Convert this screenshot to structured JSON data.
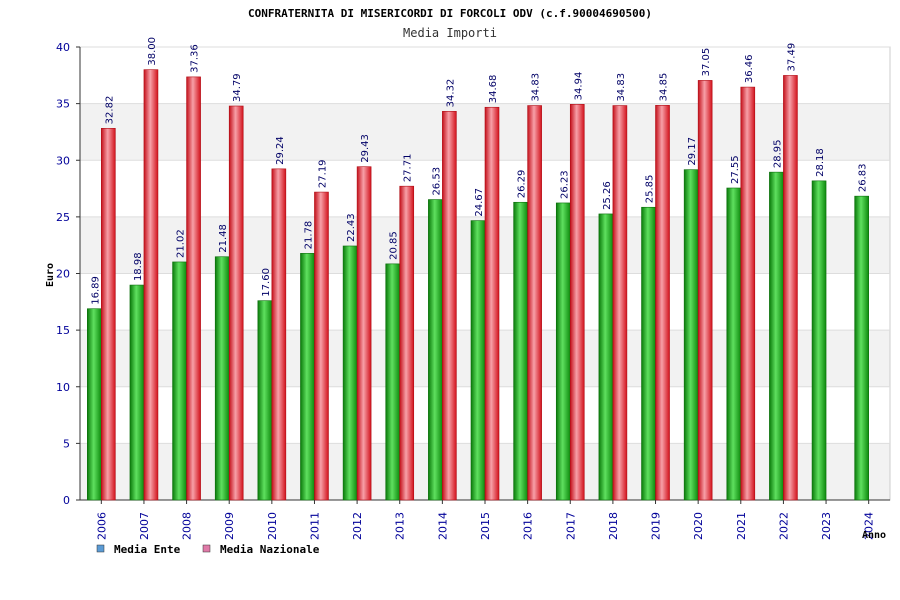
{
  "chart_data": {
    "type": "bar",
    "title": "CONFRATERNITA DI MISERICORDI DI FORCOLI ODV (c.f.90004690500)",
    "subtitle": "Media Importi",
    "ylabel": "Euro",
    "xlabel": "Anno",
    "ylim": [
      0,
      40
    ],
    "yticks": [
      0,
      5,
      10,
      15,
      20,
      25,
      30,
      35,
      40
    ],
    "categories": [
      "2006",
      "2007",
      "2008",
      "2009",
      "2010",
      "2011",
      "2012",
      "2013",
      "2014",
      "2015",
      "2016",
      "2017",
      "2018",
      "2019",
      "2020",
      "2021",
      "2022",
      "2023",
      "2024"
    ],
    "series": [
      {
        "name": "Media Ente",
        "color": "#1aa51a",
        "values": [
          16.89,
          18.98,
          21.02,
          21.48,
          17.6,
          21.78,
          22.43,
          20.85,
          26.53,
          24.67,
          26.29,
          26.23,
          25.26,
          25.85,
          29.17,
          27.55,
          28.95,
          28.18,
          26.83
        ],
        "labels": [
          "16.89",
          "18.98",
          "21.02",
          "21.48",
          "17.60",
          "21.78",
          "22.43",
          "20.85",
          "26.53",
          "24.67",
          "26.29",
          "26.23",
          "25.26",
          "25.85",
          "29.17",
          "27.55",
          "28.95",
          "28.18",
          "26.83"
        ]
      },
      {
        "name": "Media Nazionale",
        "color": "#e8202a",
        "values": [
          32.82,
          38.0,
          37.36,
          34.79,
          29.24,
          27.19,
          29.43,
          27.71,
          34.32,
          34.68,
          34.83,
          34.94,
          34.83,
          34.85,
          37.05,
          36.46,
          37.49,
          null,
          null
        ],
        "labels": [
          "32.82",
          "38.00",
          "37.36",
          "34.79",
          "29.24",
          "27.19",
          "29.43",
          "27.71",
          "34.32",
          "34.68",
          "34.83",
          "34.94",
          "34.83",
          "34.85",
          "37.05",
          "36.46",
          "37.49",
          "",
          ""
        ]
      }
    ],
    "legend": {
      "position": "bottom-left",
      "items": [
        {
          "label": "Media Ente",
          "color": "#5b9bd5"
        },
        {
          "label": "Media Nazionale",
          "color": "#e07aa8"
        }
      ]
    },
    "grid": true
  }
}
